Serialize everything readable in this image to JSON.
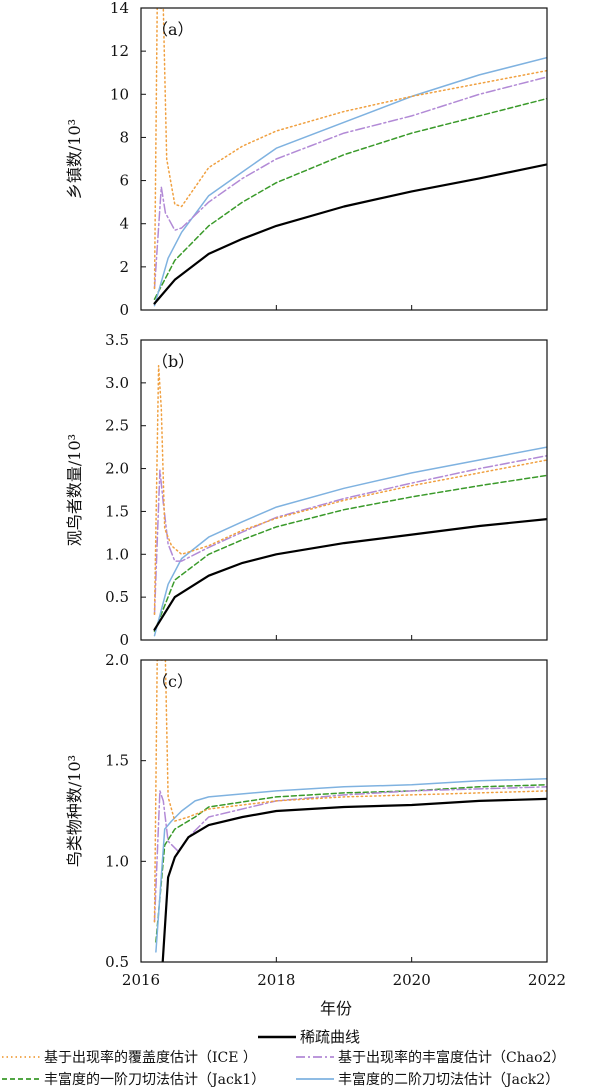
{
  "chart_data": {
    "type": "line",
    "xlabel": "年份",
    "x_ticks": [
      2016,
      2018,
      2020,
      2022
    ],
    "xlim": [
      2016,
      2022
    ],
    "legend_position": "bottom",
    "legend": [
      {
        "key": "rarefaction",
        "label": "稀疏曲线",
        "color": "#000000",
        "style": "solid"
      },
      {
        "key": "ice",
        "label": "基于出现率的覆盖度估计（ICE ）",
        "color": "#f0a040",
        "style": "dotted"
      },
      {
        "key": "chao2",
        "label": "基于出现率的丰富度估计（Chao2）",
        "color": "#b28ad6",
        "style": "dashdot"
      },
      {
        "key": "jack1",
        "label": "丰富度的一阶刀切法估计（Jack1）",
        "color": "#3a9a2a",
        "style": "dashed"
      },
      {
        "key": "jack2",
        "label": "丰富度的二阶刀切法估计（Jack2）",
        "color": "#7fb2e0",
        "style": "solid"
      }
    ],
    "panels": [
      {
        "label": "（a）",
        "ylabel": "乡镇数/10³",
        "ylim": [
          0,
          14
        ],
        "y_ticks": [
          "0",
          "2",
          "4",
          "6",
          "8",
          "10",
          "12",
          "14"
        ],
        "series": {
          "rarefaction": {
            "x": [
              2016.2,
              2016.5,
              2017,
              2017.5,
              2018,
              2019,
              2020,
              2021,
              2022
            ],
            "y": [
              0.3,
              1.4,
              2.6,
              3.3,
              3.9,
              4.8,
              5.5,
              6.1,
              6.75
            ]
          },
          "ice": {
            "x": [
              2016.2,
              2016.24,
              2016.28,
              2016.33,
              2016.38,
              2016.5,
              2016.6,
              2017,
              2017.5,
              2018,
              2019,
              2020,
              2021,
              2022
            ],
            "y": [
              1.0,
              14.0,
              14.0,
              14.0,
              7.0,
              4.9,
              4.8,
              6.6,
              7.6,
              8.3,
              9.2,
              9.9,
              10.5,
              11.1
            ]
          },
          "chao2": {
            "x": [
              2016.2,
              2016.3,
              2016.36,
              2016.5,
              2016.6,
              2017,
              2017.5,
              2018,
              2019,
              2020,
              2021,
              2022
            ],
            "y": [
              1.0,
              5.7,
              4.5,
              3.7,
              3.8,
              5.0,
              6.1,
              7.0,
              8.2,
              9.0,
              10.0,
              10.8
            ]
          },
          "jack1": {
            "x": [
              2016.2,
              2016.5,
              2017,
              2017.5,
              2018,
              2019,
              2020,
              2021,
              2022
            ],
            "y": [
              0.5,
              2.3,
              3.9,
              5.0,
              5.9,
              7.2,
              8.2,
              9.0,
              9.8
            ]
          },
          "jack2": {
            "x": [
              2016.2,
              2016.4,
              2016.6,
              2017,
              2017.5,
              2018,
              2019,
              2020,
              2021,
              2022
            ],
            "y": [
              0.2,
              2.4,
              3.6,
              5.3,
              6.4,
              7.5,
              8.7,
              9.9,
              10.9,
              11.7
            ]
          }
        }
      },
      {
        "label": "（b）",
        "ylabel": "观鸟者数量/10³",
        "ylim": [
          0,
          3.5
        ],
        "y_ticks": [
          "0",
          "0.5",
          "1.0",
          "1.5",
          "2.0",
          "2.5",
          "3.0",
          "3.5"
        ],
        "series": {
          "rarefaction": {
            "x": [
              2016.2,
              2016.5,
              2017,
              2017.5,
              2018,
              2019,
              2020,
              2021,
              2022
            ],
            "y": [
              0.12,
              0.5,
              0.75,
              0.9,
              1.0,
              1.13,
              1.23,
              1.33,
              1.41
            ]
          },
          "ice": {
            "x": [
              2016.2,
              2016.26,
              2016.3,
              2016.35,
              2016.45,
              2016.6,
              2017,
              2017.5,
              2018,
              2019,
              2020,
              2021,
              2022
            ],
            "y": [
              0.3,
              3.2,
              2.7,
              1.3,
              1.1,
              1.0,
              1.1,
              1.28,
              1.42,
              1.63,
              1.8,
              1.95,
              2.1
            ]
          },
          "chao2": {
            "x": [
              2016.2,
              2016.28,
              2016.33,
              2016.4,
              2016.5,
              2016.6,
              2017,
              2017.5,
              2018,
              2019,
              2020,
              2021,
              2022
            ],
            "y": [
              0.3,
              1.98,
              1.6,
              1.12,
              0.92,
              0.92,
              1.08,
              1.26,
              1.43,
              1.65,
              1.83,
              2.0,
              2.15
            ]
          },
          "jack1": {
            "x": [
              2016.2,
              2016.5,
              2017,
              2017.5,
              2018,
              2019,
              2020,
              2021,
              2022
            ],
            "y": [
              0.1,
              0.7,
              1.0,
              1.17,
              1.32,
              1.52,
              1.67,
              1.8,
              1.92
            ]
          },
          "jack2": {
            "x": [
              2016.2,
              2016.4,
              2016.6,
              2017,
              2017.5,
              2018,
              2019,
              2020,
              2021,
              2022
            ],
            "y": [
              0.05,
              0.65,
              0.95,
              1.2,
              1.38,
              1.55,
              1.77,
              1.95,
              2.1,
              2.25
            ]
          }
        }
      },
      {
        "label": "（c）",
        "ylabel": "鸟类物种数/10³",
        "ylim": [
          0.5,
          2.0
        ],
        "y_ticks": [
          "0.5",
          "1.0",
          "1.5",
          "2.0"
        ],
        "series": {
          "rarefaction": {
            "x": [
              2016.32,
              2016.4,
              2016.5,
              2016.7,
              2017,
              2017.5,
              2018,
              2019,
              2020,
              2021,
              2022
            ],
            "y": [
              0.5,
              0.92,
              1.02,
              1.12,
              1.18,
              1.22,
              1.25,
              1.27,
              1.28,
              1.3,
              1.31
            ]
          },
          "ice": {
            "x": [
              2016.2,
              2016.24,
              2016.28,
              2016.33,
              2016.36,
              2016.4,
              2016.5,
              2016.7,
              2017,
              2018,
              2019,
              2020,
              2021,
              2022
            ],
            "y": [
              0.7,
              2.0,
              2.0,
              2.0,
              2.0,
              1.32,
              1.2,
              1.22,
              1.26,
              1.3,
              1.32,
              1.33,
              1.34,
              1.35
            ]
          },
          "chao2": {
            "x": [
              2016.2,
              2016.28,
              2016.33,
              2016.4,
              2016.55,
              2016.7,
              2017,
              2018,
              2019,
              2020,
              2021,
              2022
            ],
            "y": [
              0.7,
              1.35,
              1.3,
              1.1,
              1.05,
              1.12,
              1.22,
              1.3,
              1.33,
              1.35,
              1.36,
              1.37
            ]
          },
          "jack1": {
            "x": [
              2016.22,
              2016.35,
              2016.5,
              2016.8,
              2017,
              2018,
              2019,
              2020,
              2021,
              2022
            ],
            "y": [
              0.6,
              1.08,
              1.16,
              1.22,
              1.27,
              1.32,
              1.34,
              1.35,
              1.37,
              1.38
            ]
          },
          "jack2": {
            "x": [
              2016.22,
              2016.35,
              2016.45,
              2016.6,
              2016.8,
              2017,
              2018,
              2019,
              2020,
              2021,
              2022
            ],
            "y": [
              0.55,
              1.16,
              1.2,
              1.25,
              1.3,
              1.32,
              1.35,
              1.37,
              1.38,
              1.4,
              1.41
            ]
          }
        }
      }
    ]
  }
}
